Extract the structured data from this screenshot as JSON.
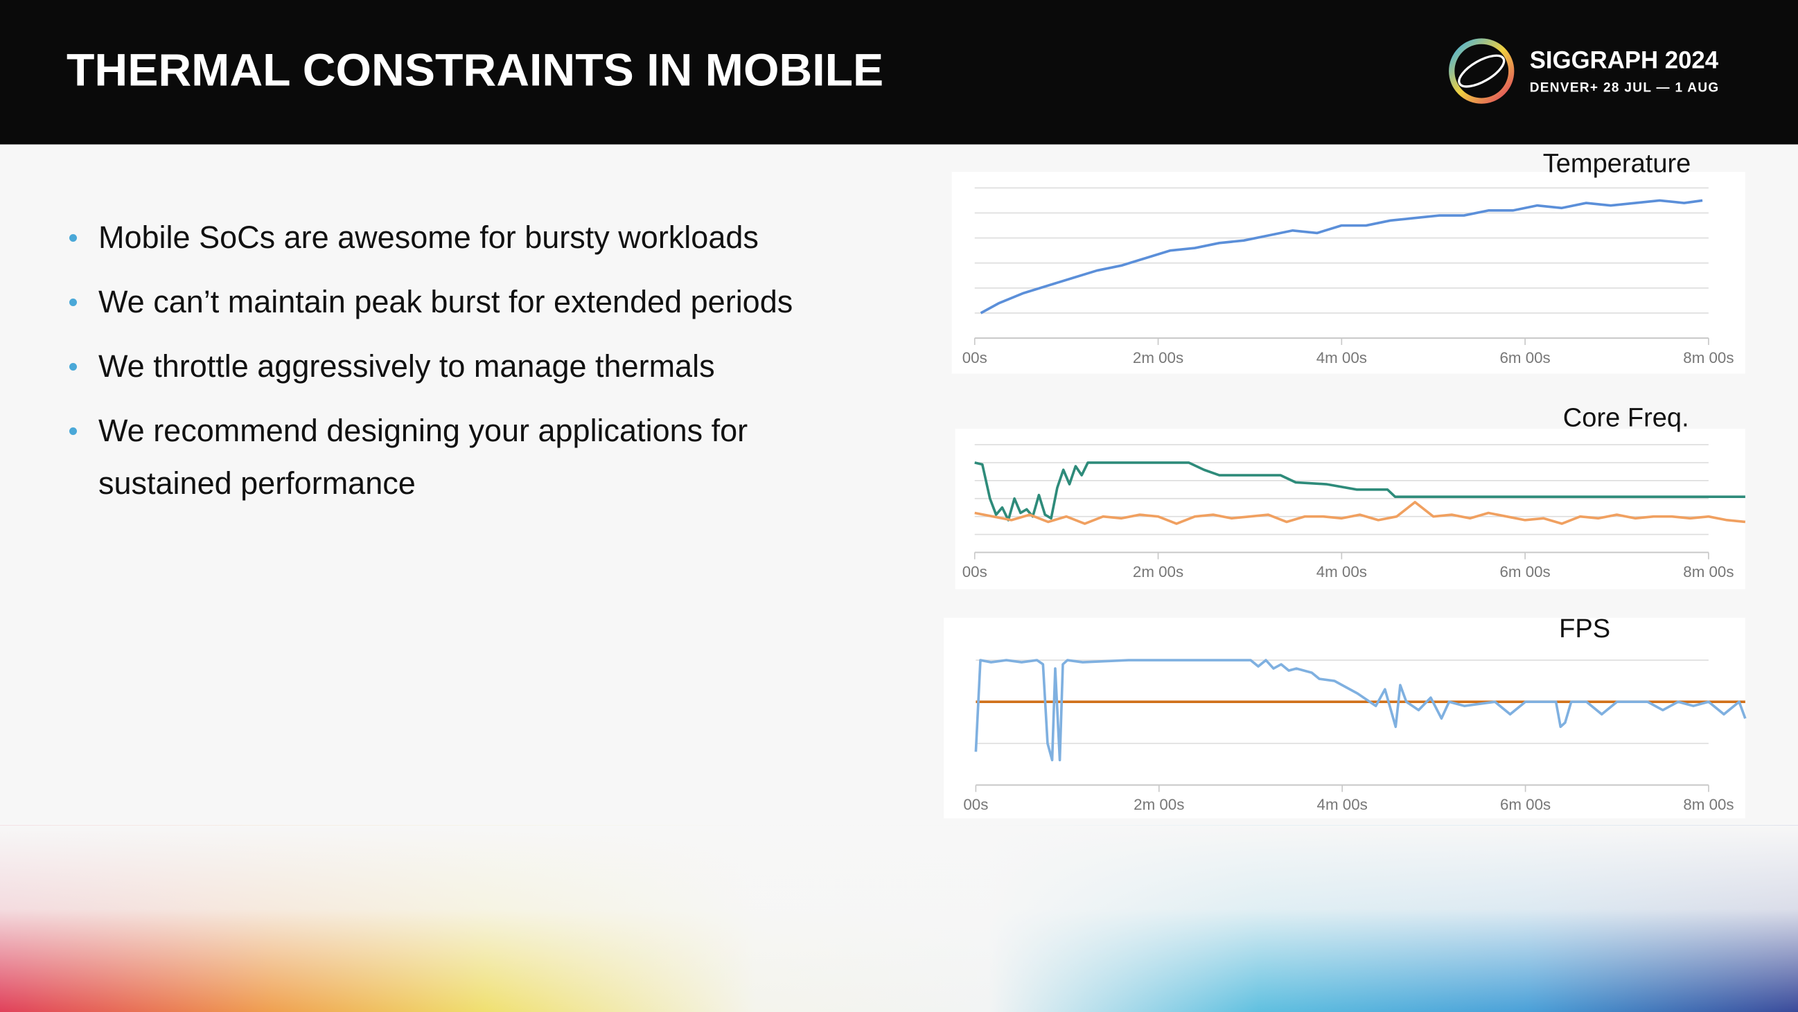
{
  "header": {
    "title": "THERMAL CONSTRAINTS IN MOBILE",
    "logo_name": "SIGGRAPH 2024",
    "logo_subtitle": "DENVER+ 28 JUL — 1 AUG"
  },
  "bullets": [
    "Mobile SoCs are awesome for bursty workloads",
    "We can’t maintain peak burst for extended periods",
    "We throttle aggressively to manage thermals",
    "We recommend designing your applications for sustained performance"
  ],
  "chart_data": [
    {
      "type": "line",
      "title": "Temperature",
      "xlim": [
        0,
        504
      ],
      "xticks": [
        {
          "value": 0,
          "label": "00s"
        },
        {
          "value": 120,
          "label": "2m 00s"
        },
        {
          "value": 240,
          "label": "4m 00s"
        },
        {
          "value": 360,
          "label": "6m 00s"
        },
        {
          "value": 480,
          "label": "8m 00s"
        }
      ],
      "ylim": [
        0,
        6
      ],
      "yticks": [
        1,
        2,
        3,
        4,
        5,
        6
      ],
      "grid": true,
      "series": [
        {
          "color": "#5b8fd9",
          "x": [
            4,
            16,
            32,
            48,
            64,
            80,
            96,
            112,
            128,
            144,
            160,
            176,
            192,
            208,
            224,
            240,
            256,
            272,
            288,
            304,
            320,
            336,
            352,
            368,
            384,
            400,
            416,
            432,
            448,
            464,
            476
          ],
          "values": [
            1.0,
            1.4,
            1.8,
            2.1,
            2.4,
            2.7,
            2.9,
            3.2,
            3.5,
            3.6,
            3.8,
            3.9,
            4.1,
            4.3,
            4.2,
            4.5,
            4.5,
            4.7,
            4.8,
            4.9,
            4.9,
            5.1,
            5.1,
            5.3,
            5.2,
            5.4,
            5.3,
            5.4,
            5.5,
            5.4,
            5.5
          ]
        }
      ]
    },
    {
      "type": "line",
      "title": "Core Freq.",
      "xlim": [
        0,
        504
      ],
      "xticks": [
        {
          "value": 0,
          "label": "00s"
        },
        {
          "value": 120,
          "label": "2m 00s"
        },
        {
          "value": 240,
          "label": "4m 00s"
        },
        {
          "value": 360,
          "label": "6m 00s"
        },
        {
          "value": 480,
          "label": "8m 00s"
        }
      ],
      "ylim": [
        0,
        6
      ],
      "yticks": [
        1,
        2,
        3,
        4,
        5,
        6
      ],
      "grid": true,
      "series": [
        {
          "color": "#2e8b7a",
          "x": [
            0,
            5,
            10,
            14,
            18,
            22,
            26,
            30,
            34,
            38,
            42,
            46,
            50,
            54,
            58,
            62,
            66,
            70,
            74,
            80,
            100,
            140,
            150,
            160,
            200,
            210,
            230,
            250,
            270,
            275,
            300,
            400,
            504
          ],
          "values": [
            5.0,
            4.9,
            3.0,
            2.1,
            2.5,
            1.8,
            3.0,
            2.2,
            2.4,
            2.0,
            3.2,
            2.1,
            1.9,
            3.6,
            4.6,
            3.8,
            4.8,
            4.3,
            5.0,
            5.0,
            5.0,
            5.0,
            4.6,
            4.3,
            4.3,
            3.9,
            3.8,
            3.5,
            3.5,
            3.1,
            3.1,
            3.1,
            3.1
          ]
        },
        {
          "color": "#f0a060",
          "x": [
            0,
            12,
            24,
            36,
            48,
            60,
            72,
            84,
            96,
            108,
            120,
            132,
            144,
            156,
            168,
            180,
            192,
            204,
            216,
            228,
            240,
            252,
            264,
            276,
            288,
            300,
            312,
            324,
            336,
            348,
            360,
            372,
            384,
            396,
            408,
            420,
            432,
            444,
            456,
            468,
            480,
            492,
            504
          ],
          "values": [
            2.2,
            2.0,
            1.8,
            2.1,
            1.7,
            2.0,
            1.6,
            2.0,
            1.9,
            2.1,
            2.0,
            1.6,
            2.0,
            2.1,
            1.9,
            2.0,
            2.1,
            1.7,
            2.0,
            2.0,
            1.9,
            2.1,
            1.8,
            2.0,
            2.8,
            2.0,
            2.1,
            1.9,
            2.2,
            2.0,
            1.8,
            1.9,
            1.6,
            2.0,
            1.9,
            2.1,
            1.9,
            2.0,
            2.0,
            1.9,
            2.0,
            1.8,
            1.7
          ]
        }
      ]
    },
    {
      "type": "line",
      "title": "FPS",
      "xlim": [
        0,
        504
      ],
      "xticks": [
        {
          "value": 0,
          "label": "00s"
        },
        {
          "value": 120,
          "label": "2m 00s"
        },
        {
          "value": 240,
          "label": "4m 00s"
        },
        {
          "value": 360,
          "label": "6m 00s"
        },
        {
          "value": 480,
          "label": "8m 00s"
        }
      ],
      "ylim": [
        0,
        3
      ],
      "yticks": [
        1,
        2,
        3
      ],
      "grid": true,
      "series": [
        {
          "color": "#d0701a",
          "x": [
            0,
            504
          ],
          "values": [
            2,
            2
          ]
        },
        {
          "color": "#7fb0e0",
          "x": [
            0,
            3,
            10,
            20,
            30,
            40,
            44,
            47,
            50,
            52,
            55,
            57,
            60,
            70,
            100,
            150,
            180,
            185,
            190,
            195,
            200,
            205,
            210,
            220,
            225,
            235,
            245,
            250,
            258,
            262,
            268,
            275,
            278,
            282,
            290,
            298,
            305,
            310,
            320,
            340,
            350,
            360,
            380,
            383,
            386,
            390,
            400,
            410,
            420,
            440,
            450,
            460,
            470,
            480,
            490,
            500,
            504
          ],
          "values": [
            0.8,
            3.0,
            2.95,
            3.0,
            2.95,
            3.0,
            2.9,
            1.0,
            0.6,
            2.8,
            0.6,
            2.9,
            3.0,
            2.95,
            3.0,
            3.0,
            3.0,
            2.85,
            3.0,
            2.8,
            2.9,
            2.75,
            2.8,
            2.7,
            2.55,
            2.5,
            2.3,
            2.2,
            2.0,
            1.9,
            2.3,
            1.4,
            2.4,
            2.0,
            1.8,
            2.1,
            1.6,
            2.0,
            1.9,
            2.0,
            1.7,
            2.0,
            2.0,
            1.4,
            1.5,
            2.0,
            2.0,
            1.7,
            2.0,
            2.0,
            1.8,
            2.0,
            1.9,
            2.0,
            1.7,
            2.0,
            1.6
          ]
        }
      ]
    }
  ]
}
